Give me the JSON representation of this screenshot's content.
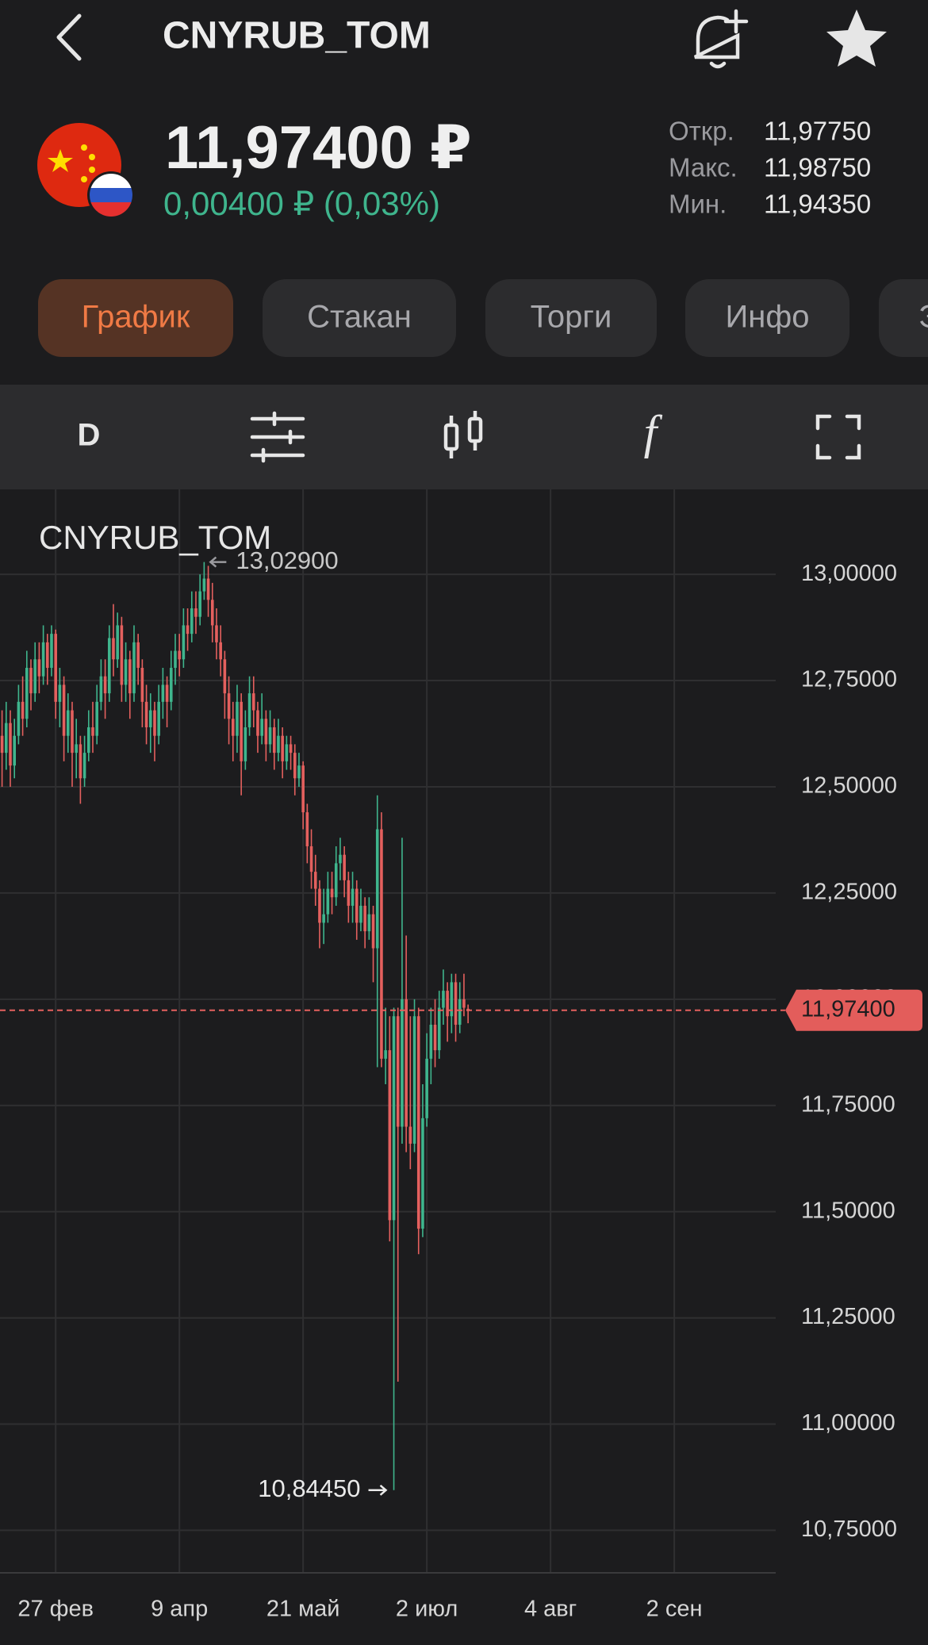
{
  "header": {
    "title": "CNYRUB_TOM"
  },
  "quote": {
    "price": "11,97400 ₽",
    "change": "0,00400 ₽ (0,03%)",
    "stats": [
      {
        "label": "Откр.",
        "value": "11,97750"
      },
      {
        "label": "Макс.",
        "value": "11,98750"
      },
      {
        "label": "Мин.",
        "value": "11,94350"
      }
    ]
  },
  "tabs": [
    "График",
    "Стакан",
    "Торги",
    "Инфо",
    "Э"
  ],
  "toolbar": {
    "interval": "D",
    "indicators": "f"
  },
  "chart_data": {
    "type": "candlestick",
    "title": "CNYRUB_TOM",
    "x": [
      -13,
      -12,
      -11,
      -10,
      -9,
      -8,
      -7,
      -6,
      -5,
      -4,
      -3,
      -2,
      -1,
      0,
      1,
      2,
      3,
      4,
      5,
      6,
      7,
      8,
      9,
      10,
      11,
      12,
      13,
      14,
      15,
      16,
      17,
      18,
      19,
      20,
      21,
      22,
      23,
      24,
      25,
      26,
      27,
      28,
      29,
      30,
      31,
      32,
      33,
      34,
      35,
      36,
      37,
      38,
      39,
      40,
      41,
      42,
      43,
      44,
      45,
      46,
      47,
      48,
      49,
      50,
      51,
      52,
      53,
      54,
      55,
      56,
      57,
      58,
      59,
      60,
      61,
      62,
      63,
      64,
      65,
      66,
      67,
      68,
      69,
      70,
      71,
      72,
      73,
      74,
      75,
      76,
      77,
      78,
      79,
      80,
      81,
      82,
      83,
      84,
      85,
      86,
      87,
      88,
      89,
      90,
      91,
      92,
      93,
      94,
      95,
      96,
      97,
      98,
      99,
      100
    ],
    "open": [
      12.62,
      12.58,
      12.65,
      12.55,
      12.62,
      12.7,
      12.66,
      12.78,
      12.72,
      12.8,
      12.76,
      12.84,
      12.78,
      12.86,
      12.7,
      12.74,
      12.62,
      12.68,
      12.58,
      12.6,
      12.52,
      12.58,
      12.64,
      12.62,
      12.7,
      12.76,
      12.72,
      12.85,
      12.8,
      12.88,
      12.74,
      12.8,
      12.72,
      12.84,
      12.78,
      12.7,
      12.64,
      12.68,
      12.62,
      12.7,
      12.74,
      12.7,
      12.78,
      12.82,
      12.8,
      12.88,
      12.86,
      12.92,
      12.9,
      12.96,
      12.99,
      12.94,
      12.88,
      12.84,
      12.8,
      12.72,
      12.66,
      12.62,
      12.7,
      12.56,
      12.64,
      12.72,
      12.68,
      12.62,
      12.66,
      12.6,
      12.64,
      12.58,
      12.62,
      12.56,
      12.6,
      12.58,
      12.52,
      12.55,
      12.44,
      12.36,
      12.3,
      12.26,
      12.18,
      12.2,
      12.26,
      12.24,
      12.32,
      12.34,
      12.28,
      12.22,
      12.26,
      12.18,
      12.22,
      12.16,
      12.2,
      12.12,
      12.4,
      11.86,
      11.88,
      11.48,
      11.96,
      11.7,
      12.0,
      11.7,
      11.66,
      11.96,
      11.46,
      11.72,
      11.86,
      11.94,
      11.88,
      11.98,
      12.02,
      11.96,
      12.04,
      11.94,
      12.0,
      11.9775
    ],
    "high": [
      12.68,
      12.7,
      12.68,
      12.66,
      12.74,
      12.76,
      12.82,
      12.8,
      12.84,
      12.84,
      12.88,
      12.86,
      12.88,
      12.87,
      12.78,
      12.76,
      12.72,
      12.7,
      12.66,
      12.62,
      12.62,
      12.68,
      12.7,
      12.74,
      12.8,
      12.8,
      12.88,
      12.93,
      12.91,
      12.9,
      12.84,
      12.82,
      12.88,
      12.86,
      12.8,
      12.74,
      12.72,
      12.7,
      12.74,
      12.78,
      12.76,
      12.82,
      12.86,
      12.86,
      12.92,
      12.92,
      12.96,
      12.96,
      13.0,
      13.029,
      13.02,
      12.98,
      12.92,
      12.88,
      12.82,
      12.76,
      12.7,
      12.74,
      12.72,
      12.68,
      12.76,
      12.76,
      12.7,
      12.72,
      12.68,
      12.68,
      12.66,
      12.66,
      12.64,
      12.62,
      12.62,
      12.6,
      12.58,
      12.56,
      12.46,
      12.4,
      12.34,
      12.28,
      12.26,
      12.3,
      12.3,
      12.36,
      12.38,
      12.36,
      12.3,
      12.3,
      12.28,
      12.26,
      12.24,
      12.24,
      12.22,
      12.48,
      12.44,
      11.98,
      11.96,
      11.98,
      11.98,
      12.38,
      12.15,
      11.96,
      12.0,
      11.98,
      11.8,
      11.92,
      11.98,
      12.0,
      12.02,
      12.07,
      12.04,
      12.06,
      12.06,
      12.04,
      12.06,
      11.9875
    ],
    "low": [
      12.5,
      12.54,
      12.5,
      12.52,
      12.6,
      12.62,
      12.64,
      12.68,
      12.7,
      12.72,
      12.74,
      12.74,
      12.76,
      12.66,
      12.64,
      12.56,
      12.58,
      12.5,
      12.52,
      12.46,
      12.5,
      12.56,
      12.58,
      12.6,
      12.68,
      12.66,
      12.7,
      12.76,
      12.78,
      12.7,
      12.7,
      12.66,
      12.7,
      12.74,
      12.64,
      12.6,
      12.58,
      12.56,
      12.6,
      12.66,
      12.64,
      12.68,
      12.74,
      12.76,
      12.78,
      12.82,
      12.84,
      12.86,
      12.88,
      12.94,
      12.9,
      12.84,
      12.8,
      12.76,
      12.66,
      12.6,
      12.56,
      12.58,
      12.48,
      12.54,
      12.62,
      12.64,
      12.58,
      12.6,
      12.56,
      12.58,
      12.54,
      12.56,
      12.52,
      12.54,
      12.54,
      12.48,
      12.5,
      12.4,
      12.32,
      12.26,
      12.22,
      12.12,
      12.13,
      12.18,
      12.2,
      12.22,
      12.28,
      12.24,
      12.18,
      12.18,
      12.14,
      12.16,
      12.12,
      12.14,
      12.04,
      11.84,
      11.84,
      11.8,
      11.43,
      10.8445,
      11.1,
      11.66,
      11.64,
      11.6,
      11.64,
      11.4,
      11.44,
      11.7,
      11.8,
      11.84,
      11.86,
      11.94,
      11.9,
      11.92,
      11.9,
      11.92,
      11.96,
      11.9435
    ],
    "close": [
      12.58,
      12.65,
      12.55,
      12.62,
      12.7,
      12.66,
      12.78,
      12.72,
      12.8,
      12.76,
      12.84,
      12.78,
      12.86,
      12.7,
      12.74,
      12.62,
      12.68,
      12.58,
      12.6,
      12.52,
      12.58,
      12.64,
      12.62,
      12.7,
      12.76,
      12.72,
      12.85,
      12.8,
      12.88,
      12.74,
      12.8,
      12.72,
      12.84,
      12.78,
      12.7,
      12.64,
      12.68,
      12.62,
      12.7,
      12.74,
      12.7,
      12.78,
      12.82,
      12.8,
      12.88,
      12.86,
      12.92,
      12.9,
      12.96,
      12.99,
      12.94,
      12.88,
      12.84,
      12.8,
      12.72,
      12.66,
      12.62,
      12.7,
      12.56,
      12.64,
      12.72,
      12.68,
      12.62,
      12.66,
      12.6,
      12.64,
      12.58,
      12.62,
      12.56,
      12.6,
      12.58,
      12.52,
      12.55,
      12.44,
      12.36,
      12.3,
      12.26,
      12.18,
      12.2,
      12.26,
      12.24,
      12.32,
      12.34,
      12.28,
      12.22,
      12.26,
      12.18,
      12.22,
      12.16,
      12.2,
      12.12,
      12.4,
      11.86,
      11.88,
      11.48,
      11.96,
      11.7,
      12.0,
      11.7,
      11.66,
      11.96,
      11.46,
      11.72,
      11.86,
      11.94,
      11.88,
      11.98,
      12.02,
      11.96,
      12.04,
      11.94,
      12.0,
      11.98,
      11.974
    ],
    "colors": {
      "up": "#3fb58d",
      "down": "#e4605e"
    },
    "xlim": [
      -13.5,
      174.6
    ],
    "xticks": [
      {
        "value": 0,
        "label": "27 фев"
      },
      {
        "value": 30,
        "label": "9 апр"
      },
      {
        "value": 60,
        "label": "21 май"
      },
      {
        "value": 90,
        "label": "2 июл"
      },
      {
        "value": 120,
        "label": "4 авг"
      },
      {
        "value": 150,
        "label": "2 сен"
      }
    ],
    "ylim": [
      10.65,
      13.2
    ],
    "yticks": [
      {
        "value": 13,
        "label": "13,00000"
      },
      {
        "value": 12.75,
        "label": "12,75000"
      },
      {
        "value": 12.5,
        "label": "12,50000"
      },
      {
        "value": 12.25,
        "label": "12,25000"
      },
      {
        "value": 12,
        "label": "12,00000"
      },
      {
        "value": 11.75,
        "label": "11,75000"
      },
      {
        "value": 11.5,
        "label": "11,50000"
      },
      {
        "value": 11.25,
        "label": "11,25000"
      },
      {
        "value": 11,
        "label": "11,00000"
      },
      {
        "value": 10.75,
        "label": "10,75000"
      }
    ],
    "grid": true,
    "last_price": {
      "value": 11.974,
      "label": "11,97400"
    },
    "annotations": [
      {
        "value": 13.029,
        "label": "13,02900"
      },
      {
        "value": 10.8445,
        "label": "10,84450"
      }
    ]
  }
}
